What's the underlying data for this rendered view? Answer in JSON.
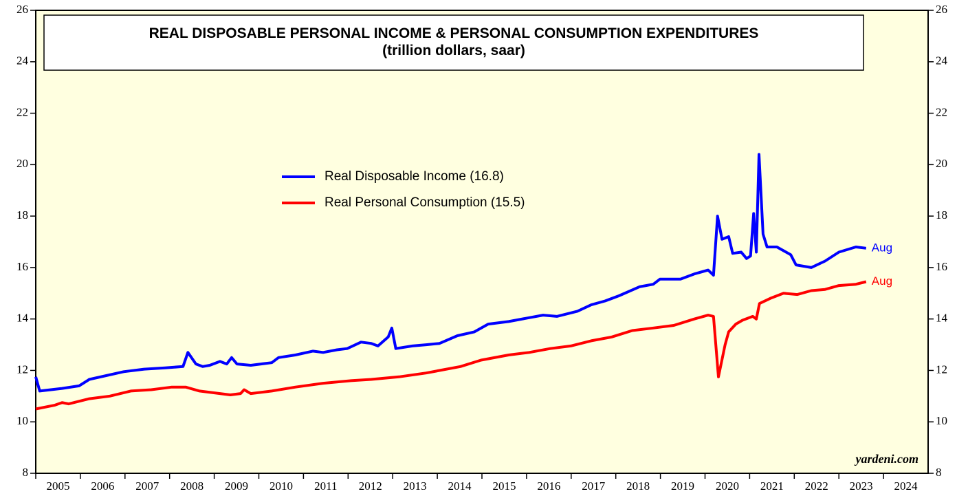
{
  "chart_data": {
    "type": "line",
    "title": "REAL DISPOSABLE PERSONAL INCOME & PERSONAL CONSUMPTION EXPENDITURES",
    "subtitle": "(trillion dollars, saar)",
    "watermark": "yardeni.com",
    "xlim": [
      2005,
      2025
    ],
    "xticks": [
      2005,
      2006,
      2007,
      2008,
      2009,
      2010,
      2011,
      2012,
      2013,
      2014,
      2015,
      2016,
      2017,
      2018,
      2019,
      2020,
      2021,
      2022,
      2023,
      2024
    ],
    "ylim": [
      8,
      26
    ],
    "yticks": [
      8,
      10,
      12,
      14,
      16,
      18,
      20,
      22,
      24,
      26
    ],
    "series": [
      {
        "name": "Real Disposable Income (16.8)",
        "color": "#0000ff",
        "end_label": "Aug",
        "x": [
          2005.0,
          2005.09,
          2005.59,
          2005.97,
          2006.2,
          2006.97,
          2007.43,
          2007.9,
          2008.3,
          2008.41,
          2008.59,
          2008.74,
          2008.9,
          2009.13,
          2009.28,
          2009.39,
          2009.51,
          2009.82,
          2010.05,
          2010.29,
          2010.44,
          2010.82,
          2011.21,
          2011.44,
          2011.75,
          2011.98,
          2012.29,
          2012.52,
          2012.67,
          2012.9,
          2012.98,
          2013.07,
          2013.44,
          2013.75,
          2014.05,
          2014.45,
          2014.83,
          2015.14,
          2015.6,
          2016.06,
          2016.37,
          2016.68,
          2017.14,
          2017.45,
          2017.76,
          2018.07,
          2018.53,
          2018.84,
          2018.99,
          2019.45,
          2019.76,
          2020.07,
          2020.19,
          2020.28,
          2020.38,
          2020.53,
          2020.62,
          2020.81,
          2020.93,
          2021.02,
          2021.09,
          2021.15,
          2021.21,
          2021.3,
          2021.39,
          2021.61,
          2021.92,
          2022.04,
          2022.38,
          2022.69,
          2023.0,
          2023.38,
          2023.61
        ],
        "values": [
          11.75,
          11.2,
          11.3,
          11.4,
          11.65,
          11.95,
          12.05,
          12.1,
          12.15,
          12.7,
          12.25,
          12.15,
          12.2,
          12.35,
          12.25,
          12.5,
          12.25,
          12.2,
          12.25,
          12.3,
          12.5,
          12.6,
          12.75,
          12.7,
          12.8,
          12.85,
          13.1,
          13.05,
          12.95,
          13.3,
          13.65,
          12.85,
          12.95,
          13.0,
          13.05,
          13.35,
          13.5,
          13.8,
          13.9,
          14.05,
          14.15,
          14.1,
          14.3,
          14.55,
          14.7,
          14.9,
          15.25,
          15.35,
          15.55,
          15.55,
          15.75,
          15.9,
          15.7,
          18.0,
          17.1,
          17.2,
          16.55,
          16.6,
          16.35,
          16.45,
          18.1,
          16.6,
          20.4,
          17.3,
          16.8,
          16.8,
          16.5,
          16.1,
          16.0,
          16.25,
          16.6,
          16.8,
          16.75
        ]
      },
      {
        "name": "Real Personal Consumption (15.5)",
        "color": "#ff0000",
        "end_label": "Aug",
        "x": [
          2005.0,
          2005.43,
          2005.59,
          2005.74,
          2006.2,
          2006.66,
          2007.13,
          2007.59,
          2008.05,
          2008.36,
          2008.67,
          2009.13,
          2009.36,
          2009.59,
          2009.67,
          2009.82,
          2010.29,
          2010.82,
          2011.44,
          2012.06,
          2012.52,
          2013.14,
          2013.75,
          2014.06,
          2014.52,
          2014.98,
          2015.6,
          2016.06,
          2016.53,
          2016.99,
          2017.45,
          2017.91,
          2018.37,
          2018.84,
          2019.3,
          2019.76,
          2020.07,
          2020.19,
          2020.3,
          2020.45,
          2020.53,
          2020.69,
          2020.84,
          2021.07,
          2021.15,
          2021.22,
          2021.46,
          2021.76,
          2022.07,
          2022.38,
          2022.69,
          2023.0,
          2023.38,
          2023.61
        ],
        "values": [
          10.5,
          10.65,
          10.75,
          10.7,
          10.9,
          11.0,
          11.2,
          11.25,
          11.35,
          11.35,
          11.2,
          11.1,
          11.05,
          11.1,
          11.25,
          11.1,
          11.2,
          11.35,
          11.5,
          11.6,
          11.65,
          11.75,
          11.9,
          12.0,
          12.15,
          12.4,
          12.6,
          12.7,
          12.85,
          12.95,
          13.15,
          13.3,
          13.55,
          13.65,
          13.75,
          14.0,
          14.15,
          14.1,
          11.75,
          13.0,
          13.5,
          13.8,
          13.95,
          14.1,
          14.0,
          14.6,
          14.8,
          15.0,
          14.95,
          15.1,
          15.15,
          15.3,
          15.35,
          15.45
        ]
      }
    ]
  }
}
